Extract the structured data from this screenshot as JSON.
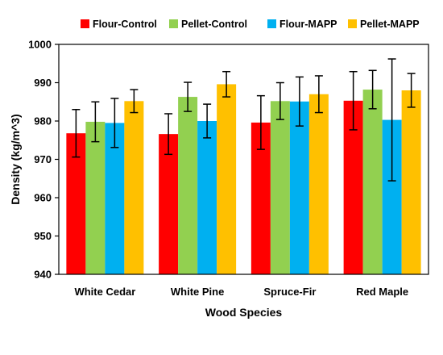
{
  "chart_data": {
    "type": "bar",
    "title": "",
    "xlabel": "Wood Species",
    "ylabel": "Density (kg/m^3)",
    "ylim": [
      940,
      1000
    ],
    "yticks": [
      940,
      950,
      960,
      970,
      980,
      990,
      1000
    ],
    "categories": [
      "White Cedar",
      "White Pine",
      "Spruce-Fir",
      "Red Maple"
    ],
    "legend_position": "top",
    "grid": false,
    "series": [
      {
        "name": "Flour-Control",
        "color": "#ff0000",
        "values": [
          976.8,
          976.6,
          979.6,
          985.3
        ],
        "errors": [
          6.2,
          5.3,
          7.0,
          7.6
        ]
      },
      {
        "name": "Pellet-Control",
        "color": "#92d050",
        "values": [
          979.8,
          986.3,
          985.2,
          988.2
        ],
        "errors": [
          5.2,
          3.8,
          4.8,
          5.0
        ]
      },
      {
        "name": "Flour-MAPP",
        "color": "#00b0f0",
        "values": [
          979.5,
          980.0,
          985.1,
          980.3
        ],
        "errors": [
          6.4,
          4.4,
          6.4,
          15.9
        ]
      },
      {
        "name": "Pellet-MAPP",
        "color": "#ffc000",
        "values": [
          985.2,
          989.6,
          987.0,
          988.0
        ],
        "errors": [
          3.0,
          3.3,
          4.8,
          4.4
        ]
      }
    ]
  }
}
